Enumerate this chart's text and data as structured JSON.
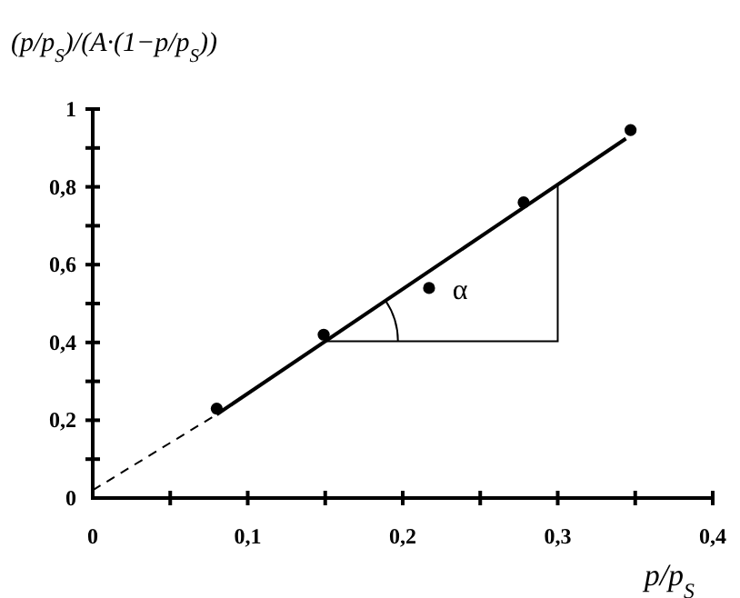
{
  "chart_data": {
    "type": "scatter",
    "xlabel": "p/p$_{S}$",
    "ylabel": "(p/p$_{S}$)/(A·(1−p/p$_{S}$))",
    "xlim": [
      0,
      0.4
    ],
    "ylim": [
      0,
      1
    ],
    "xticks": [
      0,
      {
        "value": 0.05,
        "label": null
      },
      {
        "value": 0.1,
        "label": "0,1"
      },
      {
        "value": 0.15,
        "label": null
      },
      {
        "value": 0.2,
        "label": "0,2"
      },
      {
        "value": 0.25,
        "label": null
      },
      {
        "value": 0.3,
        "label": "0,3"
      },
      {
        "value": 0.35,
        "label": null
      },
      {
        "value": 0.4,
        "label": "0,4"
      }
    ],
    "yticks": [
      0,
      {
        "value": 0.1,
        "label": null
      },
      {
        "value": 0.2,
        "label": "0,2"
      },
      {
        "value": 0.3,
        "label": null
      },
      {
        "value": 0.4,
        "label": "0,4"
      },
      {
        "value": 0.5,
        "label": null
      },
      {
        "value": 0.6,
        "label": "0,6"
      },
      {
        "value": 0.7,
        "label": null
      },
      {
        "value": 0.8,
        "label": "0,8"
      },
      {
        "value": 0.9,
        "label": null
      },
      1
    ],
    "grid": false,
    "marker": "circle",
    "annotations": [
      "α"
    ],
    "series": [
      {
        "color": "#000000",
        "x": [
          0.08,
          0.149,
          0.217,
          0.278,
          0.347
        ],
        "values": [
          0.23,
          0.42,
          0.54,
          0.76,
          0.946
        ]
      },
      {
        "type": "line",
        "color": "#000000",
        "line_style": "solid",
        "marker": "none",
        "x": [
          0.08,
          0.344
        ],
        "values": [
          0.215,
          0.924
        ]
      },
      {
        "type": "line",
        "color": "#000000",
        "line_style": "dashed",
        "marker": "none",
        "x": [
          0,
          0.08
        ],
        "values": [
          0.02,
          0.215
        ]
      }
    ]
  }
}
